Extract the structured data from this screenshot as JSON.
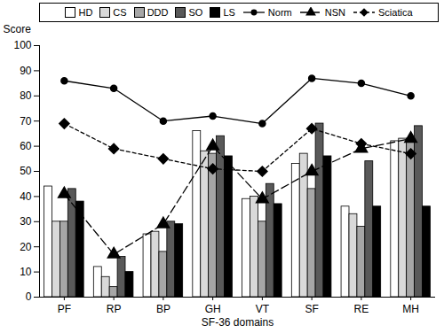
{
  "chart_data": {
    "type": "bar",
    "x_label": "SF-36 domains",
    "y_label": "Score",
    "categories": [
      "PF",
      "RP",
      "BP",
      "GH",
      "VT",
      "SF",
      "RE",
      "MH"
    ],
    "ylim": [
      0,
      100
    ],
    "yticks": [
      0,
      10,
      20,
      30,
      40,
      50,
      60,
      70,
      80,
      90,
      100
    ],
    "grid": false,
    "legend": "top",
    "series": [
      {
        "name": "HD",
        "type": "bar",
        "color": "#ffffff",
        "values": [
          44,
          12,
          25,
          66,
          39,
          53,
          36,
          62
        ]
      },
      {
        "name": "CS",
        "type": "bar",
        "color": "#d9d9d9",
        "values": [
          30,
          8,
          26,
          58,
          40,
          57,
          33,
          63
        ]
      },
      {
        "name": "DDD",
        "type": "bar",
        "color": "#a6a6a6",
        "values": [
          30,
          4,
          18,
          57,
          30,
          43,
          28,
          63
        ]
      },
      {
        "name": "SO",
        "type": "bar",
        "color": "#595959",
        "values": [
          43,
          16,
          30,
          64,
          45,
          69,
          54,
          68
        ]
      },
      {
        "name": "LS",
        "type": "bar",
        "color": "#000000",
        "values": [
          38,
          10,
          29,
          56,
          37,
          56,
          36,
          36
        ]
      },
      {
        "name": "Norm",
        "type": "line",
        "color": "#000000",
        "marker": "circle",
        "line_style": "solid",
        "values": [
          86,
          83,
          70,
          72,
          69,
          87,
          85,
          80
        ]
      },
      {
        "name": "NSN",
        "type": "line",
        "color": "#000000",
        "marker": "triangle",
        "line_style": "longdash",
        "values": [
          41,
          17,
          29,
          60,
          39,
          50,
          59,
          63
        ]
      },
      {
        "name": "Sciatica",
        "type": "line",
        "color": "#000000",
        "marker": "diamond",
        "line_style": "dashed",
        "values": [
          69,
          59,
          55,
          51,
          50,
          67,
          61,
          57
        ]
      }
    ]
  }
}
